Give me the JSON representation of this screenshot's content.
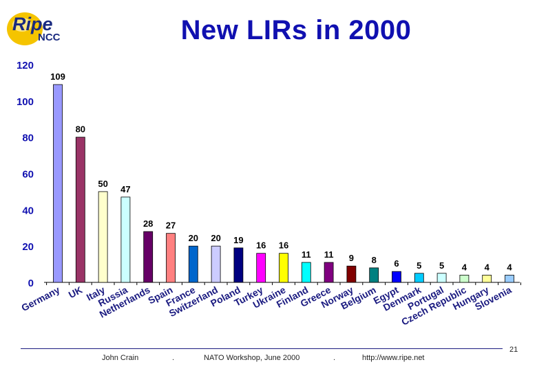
{
  "slide": {
    "title": "New LIRs in 2000",
    "logo_main": "Ripe",
    "logo_sub": "NCC",
    "page_number": "21"
  },
  "footer": {
    "author": "John Crain",
    "sep1": ".",
    "event": "NATO Workshop, June 2000",
    "sep2": ".",
    "url": "http://www.ripe.net"
  },
  "colors": {
    "axis_labels": "#1010b0",
    "category_labels": "#1a1a80",
    "bar_fills": [
      "#9999ff",
      "#993366",
      "#ffffcc",
      "#ccffff",
      "#660066",
      "#ff8080",
      "#0066cc",
      "#ccccff",
      "#000080",
      "#ff00ff",
      "#ffff00",
      "#00ffff",
      "#800080",
      "#800000",
      "#008080",
      "#0000ff",
      "#00ccff",
      "#ccffff",
      "#ccffcc",
      "#ffff99",
      "#99ccff"
    ]
  },
  "chart_data": {
    "type": "bar",
    "title": "New LIRs in 2000",
    "xlabel": "",
    "ylabel": "",
    "ylim": [
      0,
      120
    ],
    "yticks": [
      0,
      20,
      40,
      60,
      80,
      100,
      120
    ],
    "grid": false,
    "categories": [
      "Germany",
      "UK",
      "Italy",
      "Russia",
      "Netherlands",
      "Spain",
      "France",
      "Switzerland",
      "Poland",
      "Turkey",
      "Ukraine",
      "Finland",
      "Greece",
      "Norway",
      "Belgium",
      "Egypt",
      "Denmark",
      "Portugal",
      "Czech Republic",
      "Hungary",
      "Slovenia"
    ],
    "values": [
      109,
      80,
      50,
      47,
      28,
      27,
      20,
      20,
      19,
      16,
      16,
      11,
      11,
      9,
      8,
      6,
      5,
      5,
      4,
      4,
      4
    ]
  }
}
